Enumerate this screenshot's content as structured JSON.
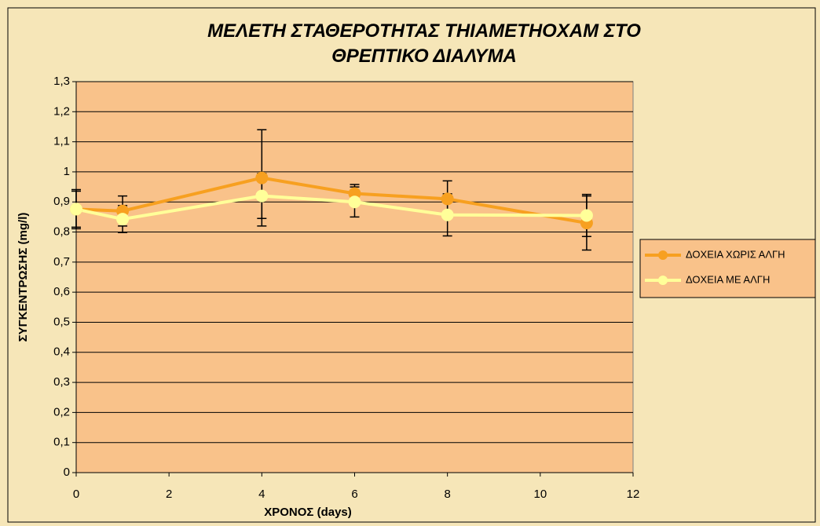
{
  "chart_data": {
    "type": "line",
    "title": "ΜΕΛΕΤΗ ΣΤΑΘΕΡΟΤΗΤΑΣ ΤΗΙΑΜΕΤΗΟΧΑΜ ΣΤΟ ΘΡΕΠΤΙΚΟ ΔΙΑΛΥΜΑ",
    "x_label": "ΧΡΟΝΟΣ (days)",
    "y_label": "ΣΥΓΚΕΝΤΡΩΣΗΣ (mg/l)",
    "x": [
      0,
      1,
      4,
      6,
      8,
      11
    ],
    "series": [
      {
        "name": "ΔΟΧΕΙΑ ΧΩΡΙΣ ΑΛΓΗ",
        "color": "#f7a020",
        "values": [
          0.876,
          0.87,
          0.98,
          0.928,
          0.91,
          0.83
        ],
        "errors": [
          0.06,
          0.05,
          0.16,
          0.03,
          0.06,
          0.09
        ]
      },
      {
        "name": "ΔΟΧΕΙΑ ΜΕ ΑΛΓΗ",
        "color": "#ffff99",
        "values": [
          0.876,
          0.843,
          0.92,
          0.9,
          0.857,
          0.855
        ],
        "errors": [
          0.065,
          0.045,
          0.075,
          0.05,
          0.07,
          0.07
        ]
      }
    ],
    "xlim": [
      0,
      12
    ],
    "xticks": [
      0,
      2,
      4,
      6,
      8,
      10,
      12
    ],
    "ylim": [
      0,
      1.3
    ],
    "yticks": [
      0,
      {
        "value": 0.1,
        "label": "0,1"
      },
      {
        "value": 0.2,
        "label": "0,2"
      },
      {
        "value": 0.3,
        "label": "0,3"
      },
      {
        "value": 0.4,
        "label": "0,4"
      },
      {
        "value": 0.5,
        "label": "0,5"
      },
      {
        "value": 0.6,
        "label": "0,6"
      },
      {
        "value": 0.7,
        "label": "0,7"
      },
      {
        "value": 0.8,
        "label": "0,8"
      },
      {
        "value": 0.9,
        "label": "0,9"
      },
      1,
      {
        "value": 1.1,
        "label": "1,1"
      },
      {
        "value": 1.2,
        "label": "1,2"
      },
      {
        "value": 1.3,
        "label": "1,3"
      }
    ],
    "grid": true,
    "legend": "right",
    "plot_background": "#f9c28a"
  }
}
